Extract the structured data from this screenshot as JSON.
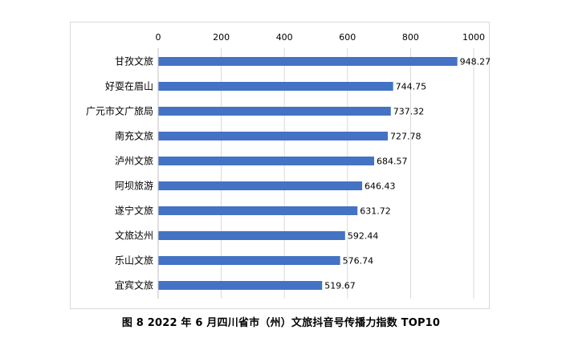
{
  "caption": "图 8 2022 年 6 月四川省市（州）文旅抖音号传播力指数 TOP10",
  "colors": {
    "bar": "#4472C4",
    "grid": "#d9d9d9",
    "text": "#000000"
  },
  "chart_data": {
    "type": "bar",
    "orientation": "horizontal",
    "categories": [
      "甘孜文旅",
      "好耍在眉山",
      "广元市文广旅局",
      "南充文旅",
      "泸州文旅",
      "阿坝旅游",
      "遂宁文旅",
      "文旅达州",
      "乐山文旅",
      "宜宾文旅"
    ],
    "values": [
      948.27,
      744.75,
      737.32,
      727.78,
      684.57,
      646.43,
      631.72,
      592.44,
      576.74,
      519.67
    ],
    "value_labels": [
      "948.27",
      "744.75",
      "737.32",
      "727.78",
      "684.57",
      "646.43",
      "631.72",
      "592.44",
      "576.74",
      "519.67"
    ],
    "xlim": [
      0,
      1000
    ],
    "x_ticks": [
      "0",
      "200",
      "400",
      "600",
      "800",
      "1000"
    ],
    "x_tick_values": [
      0,
      200,
      400,
      600,
      800,
      1000
    ],
    "x_axis_position": "top",
    "grid": true,
    "legend": false
  }
}
